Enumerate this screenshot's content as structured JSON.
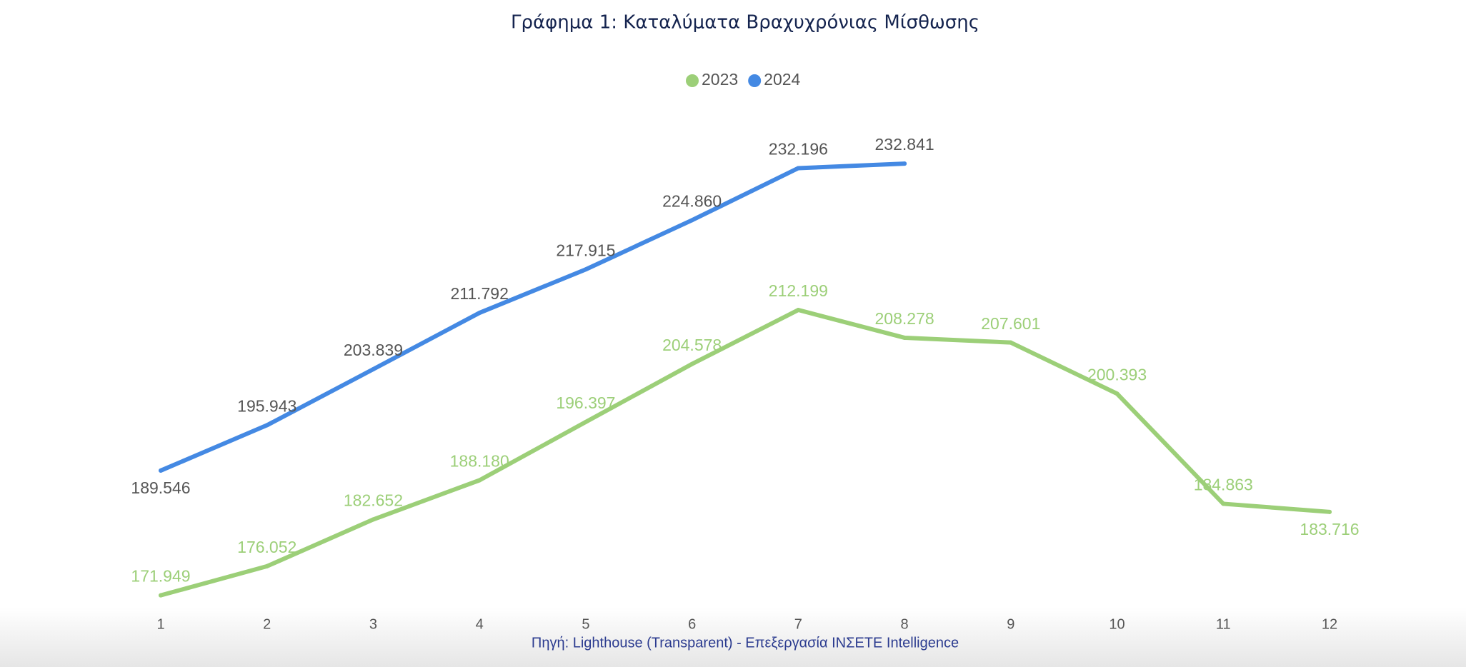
{
  "chart_data": {
    "type": "line",
    "title": "Γράφημα 1: Καταλύματα Βραχυχρόνιας Μίσθωσης",
    "categories": [
      "1",
      "2",
      "3",
      "4",
      "5",
      "6",
      "7",
      "8",
      "9",
      "10",
      "11",
      "12"
    ],
    "series": [
      {
        "name": "2023",
        "color": "#9ccf78",
        "values": [
          171949,
          176052,
          182652,
          188180,
          196397,
          204578,
          212199,
          208278,
          207601,
          200393,
          184863,
          183716
        ],
        "value_labels": [
          "171.949",
          "176.052",
          "182.652",
          "188.180",
          "196.397",
          "204.578",
          "212.199",
          "208.278",
          "207.601",
          "200.393",
          "184.863",
          "183.716"
        ]
      },
      {
        "name": "2024",
        "color": "#4489e3",
        "values": [
          189546,
          195943,
          203839,
          211792,
          217915,
          224860,
          232196,
          232841,
          null,
          null,
          null,
          null
        ],
        "value_labels": [
          "189.546",
          "195.943",
          "203.839",
          "211.792",
          "217.915",
          "224.860",
          "232.196",
          "232.841",
          null,
          null,
          null,
          null
        ]
      }
    ],
    "ylim": [
      170000,
      240000
    ],
    "source": "Πηγή: Lighthouse (Transparent) - Επεξεργασία INΣETE Intelligence"
  }
}
